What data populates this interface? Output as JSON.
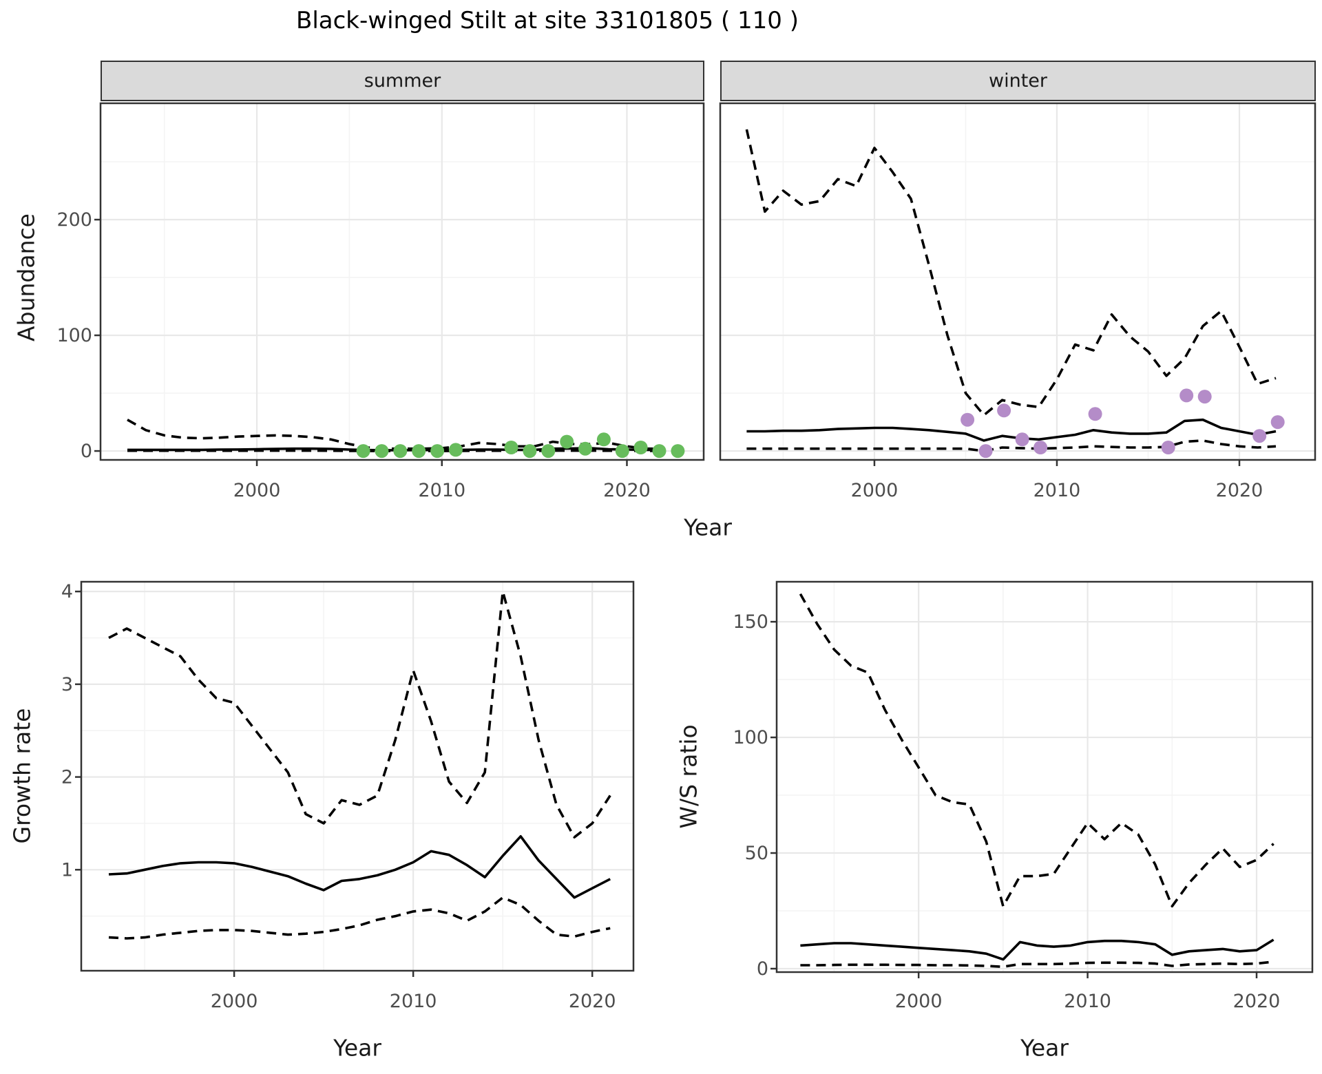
{
  "title": "Black-winged Stilt at site 33101805 ( 110 )",
  "colors": {
    "summer_point": "#67BC5C",
    "winter_point": "#B48CC8",
    "line": "#000000",
    "strip_fill": "#DADADA",
    "panel_border": "#333333",
    "grid_major": "#E8E8E8",
    "grid_minor": "#F4F4F4",
    "tick_label": "#4D4D4D"
  },
  "chart_data": [
    {
      "id": "summer-abundance",
      "type": "line",
      "facet_label": "summer",
      "xlabel": "Year",
      "ylabel": "Abundance",
      "x_domain": [
        1991.55,
        2024.15
      ],
      "y_domain": [
        -7.7,
        300.6
      ],
      "x_ticks": [
        2000,
        2010,
        2020
      ],
      "x_minor": [
        1995,
        2005,
        2015
      ],
      "y_ticks": [
        0,
        100,
        200
      ],
      "y_minor": [
        50,
        150,
        250
      ],
      "grid": true,
      "legend_position": "none",
      "years": [
        1993,
        1994,
        1995,
        1996,
        1997,
        1998,
        1999,
        2000,
        2001,
        2002,
        2003,
        2004,
        2005,
        2006,
        2007,
        2008,
        2009,
        2010,
        2011,
        2012,
        2013,
        2014,
        2015,
        2016,
        2017,
        2018,
        2019,
        2020,
        2021,
        2022
      ],
      "series": [
        {
          "name": "upper_ci",
          "style": "dashed",
          "values": [
            27,
            18,
            13.5,
            11.5,
            11,
            11.5,
            12.5,
            13,
            13.5,
            13,
            12,
            10,
            6,
            3,
            2,
            2,
            2,
            2.5,
            4,
            7,
            6,
            4,
            4,
            8,
            6,
            6,
            7,
            4,
            2,
            2
          ]
        },
        {
          "name": "mean",
          "style": "solid",
          "values": [
            1,
            1,
            1,
            1,
            1,
            1.2,
            1.3,
            1.5,
            1.8,
            2,
            2,
            1.8,
            1.2,
            0.8,
            0.7,
            0.7,
            0.8,
            0.8,
            1,
            1.2,
            1.2,
            1,
            1,
            2,
            2.2,
            2.5,
            1.5,
            1.2,
            1,
            1
          ]
        },
        {
          "name": "lower_ci",
          "style": "dashed",
          "values": [
            0.2,
            0.2,
            0.2,
            0.2,
            0.2,
            0.2,
            0.2,
            0.3,
            0.3,
            0.3,
            0.3,
            0.2,
            0.1,
            0,
            0,
            0,
            0,
            0,
            0.1,
            0.2,
            0.2,
            0.1,
            0.1,
            0.3,
            0.3,
            0.3,
            0.2,
            0.2,
            0.1,
            0.1
          ]
        }
      ],
      "points": {
        "name": "summer observations",
        "color_key": "summer_point",
        "x_offset": 0.75,
        "data": [
          [
            2005,
            0
          ],
          [
            2006,
            0
          ],
          [
            2007,
            0
          ],
          [
            2008,
            0
          ],
          [
            2009,
            0
          ],
          [
            2010,
            1
          ],
          [
            2013,
            3
          ],
          [
            2014,
            0
          ],
          [
            2015,
            0
          ],
          [
            2016,
            8
          ],
          [
            2017,
            2
          ],
          [
            2018,
            10
          ],
          [
            2019,
            0
          ],
          [
            2020,
            3
          ],
          [
            2021,
            0
          ],
          [
            2022,
            0
          ]
        ]
      }
    },
    {
      "id": "winter-abundance",
      "type": "line",
      "facet_label": "winter",
      "xlabel": "Year",
      "ylabel": "Abundance",
      "x_domain": [
        1991.55,
        2024.15
      ],
      "y_domain": [
        -7.7,
        300.6
      ],
      "x_ticks": [
        2000,
        2010,
        2020
      ],
      "x_minor": [
        1995,
        2005,
        2015
      ],
      "y_ticks": [
        0,
        100,
        200
      ],
      "y_minor": [
        50,
        150,
        250
      ],
      "grid": true,
      "legend_position": "none",
      "years": [
        1993,
        1994,
        1995,
        1996,
        1997,
        1998,
        1999,
        2000,
        2001,
        2002,
        2003,
        2004,
        2005,
        2006,
        2007,
        2008,
        2009,
        2010,
        2011,
        2012,
        2013,
        2014,
        2015,
        2016,
        2017,
        2018,
        2019,
        2020,
        2021,
        2022
      ],
      "series": [
        {
          "name": "upper_ci",
          "style": "dashed",
          "values": [
            278,
            207,
            225,
            213,
            216,
            235,
            229,
            262,
            241,
            218,
            160,
            100,
            50,
            31,
            44,
            40,
            38,
            62,
            92,
            87,
            118,
            99,
            86,
            65,
            80,
            108,
            121,
            90,
            58,
            63
          ]
        },
        {
          "name": "mean",
          "style": "solid",
          "values": [
            17,
            17,
            17.5,
            17.5,
            18,
            19,
            19.5,
            20,
            20,
            19,
            18,
            16.5,
            15,
            9,
            13,
            11,
            10,
            12,
            14,
            18,
            16,
            15,
            15,
            16,
            26,
            27,
            20,
            17,
            14,
            17
          ]
        },
        {
          "name": "lower_ci",
          "style": "dashed",
          "values": [
            2,
            2,
            2,
            2,
            2,
            2,
            2,
            2,
            2,
            2,
            2,
            2,
            2,
            0,
            3,
            2.5,
            2,
            2.5,
            3,
            4,
            3.5,
            3,
            3,
            3.5,
            8,
            9,
            6,
            4,
            3,
            4
          ]
        }
      ],
      "points": {
        "name": "winter observations",
        "color_key": "winter_point",
        "x_offset": 0.1,
        "data": [
          [
            2005,
            27
          ],
          [
            2006,
            0
          ],
          [
            2007,
            35
          ],
          [
            2008,
            10
          ],
          [
            2009,
            3
          ],
          [
            2012,
            32
          ],
          [
            2016,
            3
          ],
          [
            2017,
            48
          ],
          [
            2018,
            47
          ],
          [
            2021,
            13
          ],
          [
            2022,
            25
          ]
        ]
      }
    },
    {
      "id": "growth-rate",
      "type": "line",
      "facet_label": null,
      "xlabel": "Year",
      "ylabel": "Growth rate",
      "x_domain": [
        1991.46,
        2022.3
      ],
      "y_domain": [
        -0.089,
        4.105
      ],
      "x_ticks": [
        2000,
        2010,
        2020
      ],
      "x_minor": [
        1995,
        2005,
        2015
      ],
      "y_ticks": [
        1,
        2,
        3,
        4
      ],
      "y_minor": [
        0.5,
        1.5,
        2.5,
        3.5
      ],
      "grid": true,
      "legend_position": "none",
      "years": [
        1993,
        1994,
        1995,
        1996,
        1997,
        1998,
        1999,
        2000,
        2001,
        2002,
        2003,
        2004,
        2005,
        2006,
        2007,
        2008,
        2009,
        2010,
        2011,
        2012,
        2013,
        2014,
        2015,
        2016,
        2017,
        2018,
        2019,
        2020,
        2021
      ],
      "series": [
        {
          "name": "upper_ci",
          "style": "dashed",
          "values": [
            3.5,
            3.6,
            3.5,
            3.4,
            3.3,
            3.05,
            2.85,
            2.8,
            2.55,
            2.3,
            2.05,
            1.6,
            1.5,
            1.75,
            1.7,
            1.8,
            2.4,
            3.15,
            2.6,
            1.95,
            1.72,
            2.05,
            4.0,
            3.3,
            2.4,
            1.7,
            1.35,
            1.5,
            1.8
          ]
        },
        {
          "name": "mean",
          "style": "solid",
          "values": [
            0.95,
            0.96,
            1.0,
            1.04,
            1.07,
            1.08,
            1.08,
            1.07,
            1.03,
            0.98,
            0.93,
            0.85,
            0.78,
            0.88,
            0.9,
            0.94,
            1.0,
            1.08,
            1.2,
            1.16,
            1.05,
            0.92,
            1.15,
            1.36,
            1.1,
            0.9,
            0.7,
            0.8,
            0.9
          ]
        },
        {
          "name": "lower_ci",
          "style": "dashed",
          "values": [
            0.27,
            0.26,
            0.27,
            0.3,
            0.32,
            0.34,
            0.35,
            0.35,
            0.34,
            0.32,
            0.3,
            0.31,
            0.33,
            0.36,
            0.4,
            0.46,
            0.5,
            0.55,
            0.57,
            0.53,
            0.45,
            0.55,
            0.7,
            0.62,
            0.45,
            0.3,
            0.28,
            0.33,
            0.37
          ]
        }
      ],
      "points": null
    },
    {
      "id": "ws-ratio",
      "type": "line",
      "facet_label": null,
      "xlabel": "Year",
      "ylabel": "W/S ratio",
      "x_domain": [
        1991.6,
        2023.3
      ],
      "y_domain": [
        -1.49,
        167.3
      ],
      "x_ticks": [
        2000,
        2010,
        2020
      ],
      "x_minor": [
        1995,
        2005,
        2015
      ],
      "y_ticks": [
        0,
        50,
        100,
        150
      ],
      "y_minor": [
        25,
        75,
        125
      ],
      "grid": true,
      "legend_position": "none",
      "years": [
        1993,
        1994,
        1995,
        1996,
        1997,
        1998,
        1999,
        2000,
        2001,
        2002,
        2003,
        2004,
        2005,
        2006,
        2007,
        2008,
        2009,
        2010,
        2011,
        2012,
        2013,
        2014,
        2015,
        2016,
        2017,
        2018,
        2019,
        2020,
        2021
      ],
      "series": [
        {
          "name": "upper_ci",
          "style": "dashed",
          "values": [
            162,
            149,
            138,
            131,
            128,
            112,
            99,
            87,
            75,
            72,
            71,
            55,
            27,
            40,
            40,
            41,
            52,
            63,
            56,
            63,
            58,
            45,
            27,
            37,
            45,
            52,
            44,
            47,
            54
          ]
        },
        {
          "name": "mean",
          "style": "solid",
          "values": [
            10,
            10.5,
            11,
            11,
            10.5,
            10,
            9.5,
            9,
            8.5,
            8,
            7.5,
            6.5,
            4,
            11.5,
            10,
            9.5,
            10,
            11.5,
            12,
            12,
            11.5,
            10.5,
            6,
            7.5,
            8,
            8.5,
            7.5,
            8,
            12.5
          ]
        },
        {
          "name": "lower_ci",
          "style": "dashed",
          "values": [
            1.5,
            1.5,
            1.6,
            1.7,
            1.7,
            1.7,
            1.6,
            1.6,
            1.5,
            1.5,
            1.4,
            1.2,
            0.8,
            2,
            2,
            2,
            2.2,
            2.5,
            2.6,
            2.6,
            2.5,
            2.2,
            1.2,
            1.8,
            2,
            2.2,
            2,
            2.2,
            3
          ]
        }
      ],
      "points": null
    }
  ]
}
